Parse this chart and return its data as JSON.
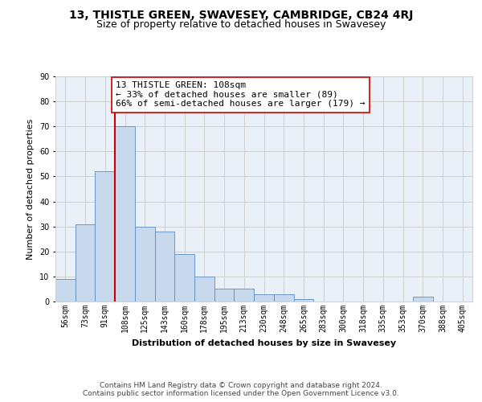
{
  "title": "13, THISTLE GREEN, SWAVESEY, CAMBRIDGE, CB24 4RJ",
  "subtitle": "Size of property relative to detached houses in Swavesey",
  "xlabel": "Distribution of detached houses by size in Swavesey",
  "ylabel": "Number of detached properties",
  "bin_labels": [
    "56sqm",
    "73sqm",
    "91sqm",
    "108sqm",
    "125sqm",
    "143sqm",
    "160sqm",
    "178sqm",
    "195sqm",
    "213sqm",
    "230sqm",
    "248sqm",
    "265sqm",
    "283sqm",
    "300sqm",
    "318sqm",
    "335sqm",
    "353sqm",
    "370sqm",
    "388sqm",
    "405sqm"
  ],
  "bar_values": [
    9,
    31,
    52,
    70,
    30,
    28,
    19,
    10,
    5,
    5,
    3,
    3,
    1,
    0,
    0,
    0,
    0,
    0,
    2,
    0,
    0
  ],
  "bar_color": "#c9d9ed",
  "bar_edge_color": "#5b8cbf",
  "vline_x_index": 3,
  "vline_color": "#cc0000",
  "annotation_text": "13 THISTLE GREEN: 108sqm\n← 33% of detached houses are smaller (89)\n66% of semi-detached houses are larger (179) →",
  "annotation_box_color": "#ffffff",
  "annotation_box_edge": "#cc0000",
  "ylim": [
    0,
    90
  ],
  "yticks": [
    0,
    10,
    20,
    30,
    40,
    50,
    60,
    70,
    80,
    90
  ],
  "grid_color": "#d0d0d0",
  "background_color": "#eaf0f8",
  "footer_text": "Contains HM Land Registry data © Crown copyright and database right 2024.\nContains public sector information licensed under the Open Government Licence v3.0.",
  "title_fontsize": 10,
  "subtitle_fontsize": 9,
  "axis_label_fontsize": 8,
  "tick_fontsize": 7,
  "annotation_fontsize": 8,
  "footer_fontsize": 6.5
}
